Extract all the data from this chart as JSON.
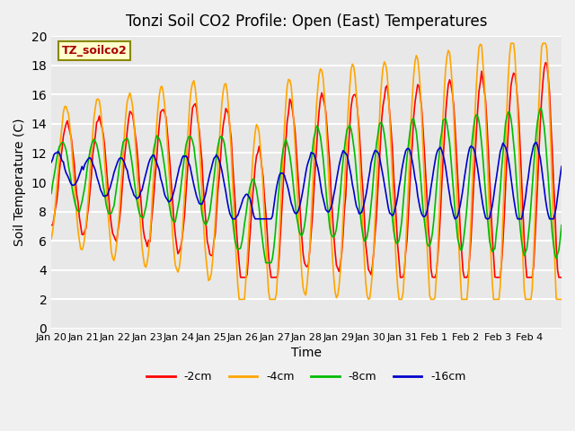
{
  "title": "Tonzi Soil CO2 Profile: Open (East) Temperatures",
  "xlabel": "Time",
  "ylabel": "Soil Temperature (C)",
  "ylim": [
    0,
    20
  ],
  "yticks": [
    0,
    2,
    4,
    6,
    8,
    10,
    12,
    14,
    16,
    18,
    20
  ],
  "legend_label": "TZ_soilco2",
  "series_labels": [
    "-2cm",
    "-4cm",
    "-8cm",
    "-16cm"
  ],
  "series_colors": [
    "#ff0000",
    "#ffa500",
    "#00bb00",
    "#0000cc"
  ],
  "plot_background": "#e8e8e8",
  "fig_background": "#f0f0f0",
  "grid_color": "#ffffff",
  "x_tick_labels": [
    "Jan 20",
    "Jan 21",
    "Jan 22",
    "Jan 23",
    "Jan 24",
    "Jan 25",
    "Jan 26",
    "Jan 27",
    "Jan 28",
    "Jan 29",
    "Jan 30",
    "Jan 31",
    "Feb 1",
    "Feb 2",
    "Feb 3",
    "Feb 4"
  ]
}
